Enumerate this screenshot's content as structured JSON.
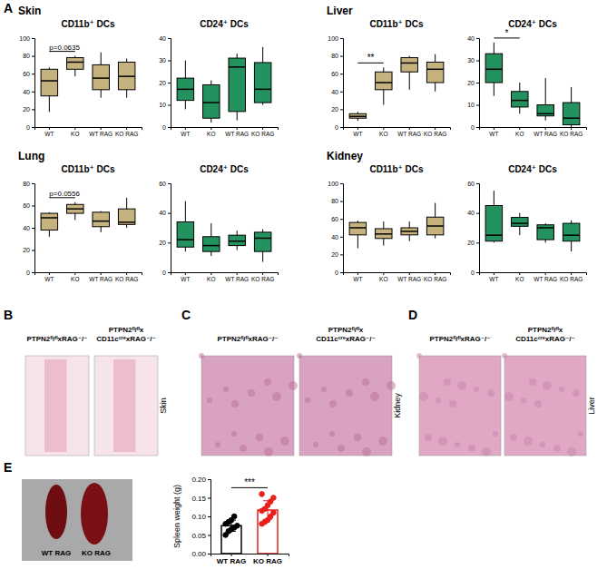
{
  "panel_labels": [
    "A",
    "B",
    "C",
    "D",
    "E"
  ],
  "images": [
    {
      "panel": "B",
      "left": "PTPN2ᶠˡ/ᶠˡxRAG⁻/⁻",
      "right": [
        "PTPN2ᶠˡ/ᶠˡx",
        "CD11cᶜʳᵉxRAG⁻/⁻"
      ],
      "tissue": "Skin"
    },
    {
      "panel": "C",
      "left": "PTPN2ᶠˡ/ᶠˡxRAG⁻/⁻",
      "right": [
        "PTPN2ᶠˡ/ᶠˡx",
        "CD11cᶜʳᵉxRAG⁻/⁻"
      ],
      "tissue": "Kidney"
    },
    {
      "panel": "D",
      "left": "PTPN2ᶠˡ/ᶠˡxRAG⁻/⁻",
      "right": [
        "PTPN2ᶠˡ/ᶠˡx",
        "CD11cᶜʳᵉxRAG⁻/⁻"
      ],
      "tissue": "Liver"
    },
    {
      "panel": "E",
      "labels": [
        "WT RAG",
        "KO RAG"
      ]
    }
  ],
  "chart_data": [
    {
      "type": "box",
      "subtitle": "Skin",
      "title": "CD11b⁺ DCs",
      "color": "#c6b27e",
      "categories": [
        "WT",
        "KO",
        "WT RAG",
        "KO RAG"
      ],
      "boxes": [
        {
          "min": 17,
          "q1": 35,
          "median": 52,
          "q3": 65,
          "max": 67
        },
        {
          "min": 57,
          "q1": 65,
          "median": 73,
          "q3": 78,
          "max": 80
        },
        {
          "min": 33,
          "q1": 42,
          "median": 55,
          "q3": 70,
          "max": 84
        },
        {
          "min": 33,
          "q1": 42,
          "median": 57,
          "q3": 73,
          "max": 77
        }
      ],
      "ylim": [
        0,
        100
      ],
      "yticks": [
        0,
        20,
        40,
        60,
        80,
        100
      ],
      "annotations": [
        {
          "text": "p=0.0635",
          "between": [
            "WT",
            "KO"
          ]
        }
      ]
    },
    {
      "type": "box",
      "title": "CD24⁺ DCs",
      "color": "#23925f",
      "categories": [
        "WT",
        "KO",
        "WT RAG",
        "KO RAG"
      ],
      "boxes": [
        {
          "min": 8,
          "q1": 12,
          "median": 17,
          "q3": 22,
          "max": 30
        },
        {
          "min": 2,
          "q1": 4,
          "median": 11,
          "q3": 19,
          "max": 21
        },
        {
          "min": 3,
          "q1": 7,
          "median": 27,
          "q3": 31,
          "max": 33
        },
        {
          "min": 10,
          "q1": 11,
          "median": 17,
          "q3": 29,
          "max": 36
        }
      ],
      "ylim": [
        0,
        40
      ],
      "yticks": [
        0,
        10,
        20,
        30,
        40
      ]
    },
    {
      "type": "box",
      "subtitle": "Liver",
      "title": "CD11b⁺ DCs",
      "color": "#c6b27e",
      "categories": [
        "WT",
        "KO",
        "WT RAG",
        "KO RAG"
      ],
      "boxes": [
        {
          "min": 7,
          "q1": 10,
          "median": 12,
          "q3": 15,
          "max": 17
        },
        {
          "min": 25,
          "q1": 42,
          "median": 50,
          "q3": 62,
          "max": 67
        },
        {
          "min": 42,
          "q1": 62,
          "median": 72,
          "q3": 78,
          "max": 80
        },
        {
          "min": 40,
          "q1": 50,
          "median": 65,
          "q3": 73,
          "max": 82
        }
      ],
      "ylim": [
        0,
        100
      ],
      "yticks": [
        0,
        20,
        40,
        60,
        80,
        100
      ],
      "annotations": [
        {
          "text": "**",
          "between": [
            "WT",
            "KO"
          ]
        }
      ]
    },
    {
      "type": "box",
      "title": "CD24⁺ DCs",
      "color": "#23925f",
      "categories": [
        "WT",
        "KO",
        "WT RAG",
        "KO RAG"
      ],
      "boxes": [
        {
          "min": 14,
          "q1": 20,
          "median": 26,
          "q3": 33,
          "max": 38
        },
        {
          "min": 6,
          "q1": 9,
          "median": 12,
          "q3": 16,
          "max": 20
        },
        {
          "min": 3,
          "q1": 5,
          "median": 6,
          "q3": 10,
          "max": 22
        },
        {
          "min": 0,
          "q1": 1,
          "median": 4,
          "q3": 11,
          "max": 18
        }
      ],
      "ylim": [
        0,
        40
      ],
      "yticks": [
        0,
        10,
        20,
        30,
        40
      ],
      "annotations": [
        {
          "text": "*",
          "between": [
            "WT",
            "KO"
          ]
        }
      ]
    },
    {
      "type": "box",
      "subtitle": "Lung",
      "title": "CD11b⁺ DCs",
      "color": "#c6b27e",
      "categories": [
        "WT",
        "KO",
        "WT RAG",
        "KO RAG"
      ],
      "boxes": [
        {
          "min": 32,
          "q1": 38,
          "median": 49,
          "q3": 53,
          "max": 54
        },
        {
          "min": 47,
          "q1": 53,
          "median": 57,
          "q3": 61,
          "max": 63
        },
        {
          "min": 36,
          "q1": 41,
          "median": 46,
          "q3": 54,
          "max": 55
        },
        {
          "min": 40,
          "q1": 43,
          "median": 45,
          "q3": 57,
          "max": 67
        }
      ],
      "ylim": [
        0,
        80
      ],
      "yticks": [
        0,
        20,
        40,
        60,
        80
      ],
      "annotations": [
        {
          "text": "p=0.0556",
          "between": [
            "WT",
            "KO"
          ]
        }
      ]
    },
    {
      "type": "box",
      "title": "CD24⁺ DCs",
      "color": "#23925f",
      "categories": [
        "WT",
        "KO",
        "WT RAG",
        "KO RAG"
      ],
      "boxes": [
        {
          "min": 14,
          "q1": 17,
          "median": 22,
          "q3": 34,
          "max": 48
        },
        {
          "min": 11,
          "q1": 14,
          "median": 18,
          "q3": 24,
          "max": 33
        },
        {
          "min": 15,
          "q1": 18,
          "median": 21,
          "q3": 25,
          "max": 28
        },
        {
          "min": 7,
          "q1": 14,
          "median": 23,
          "q3": 27,
          "max": 29
        }
      ],
      "ylim": [
        0,
        60
      ],
      "yticks": [
        0,
        20,
        40,
        60
      ]
    },
    {
      "type": "box",
      "subtitle": "Kidney",
      "title": "CD11b⁺ DCs",
      "color": "#c6b27e",
      "categories": [
        "WT",
        "KO",
        "WT RAG",
        "KO RAG"
      ],
      "boxes": [
        {
          "min": 27,
          "q1": 42,
          "median": 50,
          "q3": 56,
          "max": 58
        },
        {
          "min": 30,
          "q1": 38,
          "median": 43,
          "q3": 49,
          "max": 57
        },
        {
          "min": 35,
          "q1": 42,
          "median": 46,
          "q3": 50,
          "max": 57
        },
        {
          "min": 38,
          "q1": 42,
          "median": 52,
          "q3": 62,
          "max": 78
        }
      ],
      "ylim": [
        0,
        100
      ],
      "yticks": [
        0,
        20,
        40,
        60,
        80,
        100
      ]
    },
    {
      "type": "box",
      "title": "CD24⁺ DCs",
      "color": "#23925f",
      "categories": [
        "WT",
        "KO",
        "WT RAG",
        "KO RAG"
      ],
      "boxes": [
        {
          "min": 20,
          "q1": 21,
          "median": 25,
          "q3": 45,
          "max": 55
        },
        {
          "min": 25,
          "q1": 31,
          "median": 33,
          "q3": 37,
          "max": 40
        },
        {
          "min": 20,
          "q1": 22,
          "median": 30,
          "q3": 32,
          "max": 33
        },
        {
          "min": 14,
          "q1": 21,
          "median": 25,
          "q3": 33,
          "max": 35
        }
      ],
      "ylim": [
        0,
        60
      ],
      "yticks": [
        0,
        20,
        40,
        60
      ]
    },
    {
      "type": "bar",
      "y_label": "Spleen weight (g)",
      "categories": [
        "WT RAG",
        "KO RAG"
      ],
      "values": [
        0.075,
        0.117
      ],
      "errors": [
        0.015,
        0.025
      ],
      "points": [
        [
          0.05,
          0.06,
          0.065,
          0.07,
          0.075,
          0.08,
          0.085,
          0.09,
          0.1
        ],
        [
          0.08,
          0.085,
          0.09,
          0.1,
          0.11,
          0.115,
          0.12,
          0.13,
          0.14,
          0.15,
          0.16
        ]
      ],
      "colors": [
        "#000000",
        "#e8201c"
      ],
      "marker": "circle",
      "ylim": [
        0,
        0.2
      ],
      "yticks": [
        {
          "value": 0,
          "label": "0.00"
        },
        {
          "value": 0.05,
          "label": "0.05"
        },
        {
          "value": 0.1,
          "label": "0.10"
        },
        {
          "value": 0.15,
          "label": "0.15"
        },
        {
          "value": 0.2,
          "label": "0.20"
        }
      ],
      "annotations": [
        {
          "text": "***",
          "between": [
            "WT RAG",
            "KO RAG"
          ]
        }
      ]
    }
  ]
}
